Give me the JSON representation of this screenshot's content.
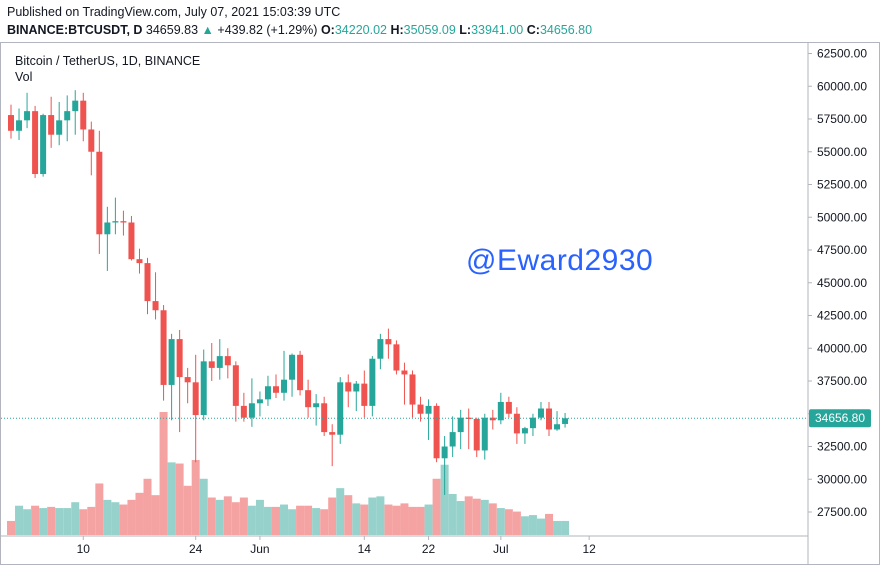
{
  "header": {
    "published": "Published on TradingView.com, July 07, 2021 15:03:39 UTC",
    "symbol": "BINANCE:BTCUSDT, D",
    "last": "34659.83",
    "change_arrow": "▲",
    "change": "+439.82 (+1.29%)",
    "o_label": "O:",
    "o_value": "34220.02",
    "h_label": "H:",
    "h_value": "35059.09",
    "l_label": "L:",
    "l_value": "33941.00",
    "c_label": "C:",
    "c_value": "34656.80"
  },
  "legend": {
    "title": "Bitcoin / TetherUS, 1D, BINANCE",
    "volume": "Vol"
  },
  "watermark": "@Eward2930",
  "price_tag": "34656.80",
  "colors": {
    "up": "#26a69a",
    "down": "#ef5350",
    "vol_up": "#96d2cb",
    "vol_down": "#f5a3a2",
    "watermark": "#2962ff"
  },
  "chart_data": {
    "type": "candlestick",
    "y_axis_ticks": [
      "62500.00",
      "60000.00",
      "57500.00",
      "55000.00",
      "52500.00",
      "50000.00",
      "47500.00",
      "45000.00",
      "42500.00",
      "40000.00",
      "37500.00",
      "35000.00",
      "32500.00",
      "30000.00",
      "27500.00"
    ],
    "ylim": [
      25000,
      63500
    ],
    "x_axis_ticks": [
      {
        "label": "10",
        "day": 9
      },
      {
        "label": "24",
        "day": 23
      },
      {
        "label": "Jun",
        "day": 31
      },
      {
        "label": "14",
        "day": 44
      },
      {
        "label": "22",
        "day": 52
      },
      {
        "label": "Jul",
        "day": 61
      },
      {
        "label": "12",
        "day": 72
      }
    ],
    "last_price": 34656.8,
    "candles": [
      {
        "o": 57800,
        "h": 58600,
        "l": 56000,
        "c": 56600
      },
      {
        "o": 56600,
        "h": 58300,
        "l": 55900,
        "c": 57400
      },
      {
        "o": 57400,
        "h": 59500,
        "l": 56800,
        "c": 58100
      },
      {
        "o": 58100,
        "h": 58500,
        "l": 53000,
        "c": 53300
      },
      {
        "o": 53300,
        "h": 57900,
        "l": 53100,
        "c": 57800
      },
      {
        "o": 57800,
        "h": 59200,
        "l": 55300,
        "c": 56300
      },
      {
        "o": 56300,
        "h": 58800,
        "l": 55500,
        "c": 57400
      },
      {
        "o": 57400,
        "h": 59300,
        "l": 55800,
        "c": 58100
      },
      {
        "o": 58100,
        "h": 59700,
        "l": 56300,
        "c": 58900
      },
      {
        "o": 58900,
        "h": 59500,
        "l": 55800,
        "c": 56700
      },
      {
        "o": 56700,
        "h": 57300,
        "l": 53200,
        "c": 55000
      },
      {
        "o": 55000,
        "h": 56600,
        "l": 47200,
        "c": 48700
      },
      {
        "o": 48700,
        "h": 50800,
        "l": 45900,
        "c": 49600
      },
      {
        "o": 49600,
        "h": 51500,
        "l": 48700,
        "c": 49700
      },
      {
        "o": 49700,
        "h": 50500,
        "l": 48600,
        "c": 49600
      },
      {
        "o": 49600,
        "h": 50100,
        "l": 46700,
        "c": 46800
      },
      {
        "o": 46800,
        "h": 47600,
        "l": 45700,
        "c": 46500
      },
      {
        "o": 46500,
        "h": 46900,
        "l": 42600,
        "c": 43600
      },
      {
        "o": 43600,
        "h": 45800,
        "l": 42200,
        "c": 42900
      },
      {
        "o": 42900,
        "h": 43300,
        "l": 36000,
        "c": 37200
      },
      {
        "o": 37200,
        "h": 41100,
        "l": 34500,
        "c": 40700
      },
      {
        "o": 40700,
        "h": 41400,
        "l": 33600,
        "c": 37800
      },
      {
        "o": 37800,
        "h": 38500,
        "l": 35800,
        "c": 37400
      },
      {
        "o": 37400,
        "h": 39500,
        "l": 31300,
        "c": 34900
      },
      {
        "o": 34900,
        "h": 39900,
        "l": 34500,
        "c": 39000
      },
      {
        "o": 39000,
        "h": 40400,
        "l": 37500,
        "c": 38500
      },
      {
        "o": 38500,
        "h": 40700,
        "l": 37600,
        "c": 39400
      },
      {
        "o": 39400,
        "h": 40000,
        "l": 37700,
        "c": 38700
      },
      {
        "o": 38700,
        "h": 39000,
        "l": 34400,
        "c": 35600
      },
      {
        "o": 35600,
        "h": 36600,
        "l": 34400,
        "c": 34700
      },
      {
        "o": 34700,
        "h": 37700,
        "l": 34000,
        "c": 35800
      },
      {
        "o": 35800,
        "h": 36700,
        "l": 34800,
        "c": 36100
      },
      {
        "o": 36100,
        "h": 37900,
        "l": 35600,
        "c": 37100
      },
      {
        "o": 37100,
        "h": 38000,
        "l": 36200,
        "c": 36600
      },
      {
        "o": 36600,
        "h": 39800,
        "l": 36000,
        "c": 37600
      },
      {
        "o": 37600,
        "h": 39600,
        "l": 36300,
        "c": 39500
      },
      {
        "o": 39500,
        "h": 39800,
        "l": 36400,
        "c": 36800
      },
      {
        "o": 36800,
        "h": 37600,
        "l": 34700,
        "c": 35500
      },
      {
        "o": 35500,
        "h": 36500,
        "l": 34100,
        "c": 35800
      },
      {
        "o": 35800,
        "h": 36300,
        "l": 33300,
        "c": 33600
      },
      {
        "o": 33600,
        "h": 34200,
        "l": 31000,
        "c": 33400
      },
      {
        "o": 33400,
        "h": 37800,
        "l": 32700,
        "c": 37400
      },
      {
        "o": 37400,
        "h": 38000,
        "l": 35500,
        "c": 36700
      },
      {
        "o": 36700,
        "h": 37500,
        "l": 35200,
        "c": 37300
      },
      {
        "o": 37300,
        "h": 38300,
        "l": 34700,
        "c": 35600
      },
      {
        "o": 35600,
        "h": 39400,
        "l": 34800,
        "c": 39200
      },
      {
        "o": 39200,
        "h": 41100,
        "l": 38400,
        "c": 40700
      },
      {
        "o": 40700,
        "h": 41500,
        "l": 39200,
        "c": 40300
      },
      {
        "o": 40300,
        "h": 40600,
        "l": 38000,
        "c": 38300
      },
      {
        "o": 38300,
        "h": 38900,
        "l": 35700,
        "c": 38000
      },
      {
        "o": 38000,
        "h": 38300,
        "l": 34700,
        "c": 35700
      },
      {
        "o": 35700,
        "h": 36300,
        "l": 34400,
        "c": 35000
      },
      {
        "o": 35000,
        "h": 36100,
        "l": 33000,
        "c": 35600
      },
      {
        "o": 35600,
        "h": 35800,
        "l": 31300,
        "c": 31600
      },
      {
        "o": 31600,
        "h": 33300,
        "l": 28800,
        "c": 32500
      },
      {
        "o": 32500,
        "h": 34800,
        "l": 31700,
        "c": 33600
      },
      {
        "o": 33600,
        "h": 35300,
        "l": 32300,
        "c": 34700
      },
      {
        "o": 34700,
        "h": 35400,
        "l": 32300,
        "c": 34600
      },
      {
        "o": 34600,
        "h": 34700,
        "l": 31700,
        "c": 32200
      },
      {
        "o": 32200,
        "h": 35000,
        "l": 31500,
        "c": 34700
      },
      {
        "o": 34700,
        "h": 35300,
        "l": 33800,
        "c": 34500
      },
      {
        "o": 34500,
        "h": 36600,
        "l": 34200,
        "c": 35900
      },
      {
        "o": 35900,
        "h": 36300,
        "l": 34700,
        "c": 35000
      },
      {
        "o": 35000,
        "h": 35500,
        "l": 32700,
        "c": 33500
      },
      {
        "o": 33500,
        "h": 34000,
        "l": 32700,
        "c": 33900
      },
      {
        "o": 33900,
        "h": 35000,
        "l": 33300,
        "c": 34700
      },
      {
        "o": 34700,
        "h": 35900,
        "l": 34500,
        "c": 35400
      },
      {
        "o": 35400,
        "h": 35900,
        "l": 33300,
        "c": 33800
      },
      {
        "o": 33800,
        "h": 35200,
        "l": 33700,
        "c": 34200
      },
      {
        "o": 34220,
        "h": 35059,
        "l": 33941,
        "c": 34657
      }
    ],
    "volume": [
      12,
      25,
      22,
      25,
      23,
      24,
      23,
      23,
      28,
      22,
      24,
      44,
      30,
      28,
      26,
      30,
      36,
      48,
      34,
      105,
      62,
      61,
      42,
      64,
      48,
      32,
      30,
      33,
      28,
      32,
      25,
      30,
      24,
      24,
      26,
      22,
      25,
      25,
      23,
      22,
      32,
      40,
      34,
      27,
      26,
      32,
      33,
      26,
      25,
      27,
      24,
      24,
      26,
      48,
      60,
      35,
      29,
      33,
      31,
      30,
      27,
      23,
      22,
      20,
      16,
      17,
      14,
      18,
      12,
      12
    ]
  }
}
